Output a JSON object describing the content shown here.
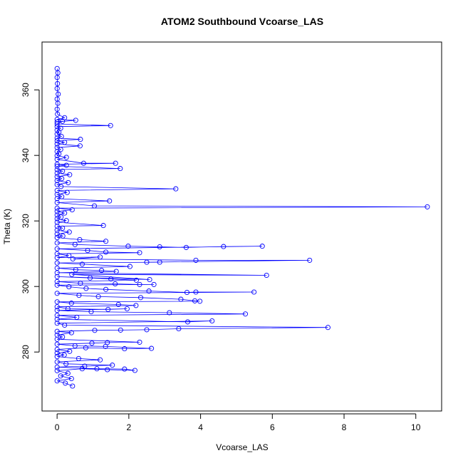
{
  "chart_data": {
    "type": "scatter",
    "title": "ATOM2 Southbound Vcoarse_LAS",
    "xlabel": "Vcoarse_LAS",
    "ylabel": "Theta (K)",
    "xlim": [
      -0.42,
      10.72
    ],
    "ylim": [
      262.0,
      374.6
    ],
    "xticks": [
      0,
      2,
      4,
      6,
      8,
      10
    ],
    "yticks": [
      280,
      300,
      320,
      340,
      360
    ],
    "grid": false,
    "legend": "none",
    "series_color": "#0000ff",
    "marker": "open-circle",
    "connect_points": true,
    "points": [
      [
        0.0,
        366.5
      ],
      [
        0.02,
        365.2
      ],
      [
        0.0,
        363.8
      ],
      [
        0.01,
        361.9
      ],
      [
        0.0,
        360.4
      ],
      [
        0.03,
        358.7
      ],
      [
        0.0,
        357.2
      ],
      [
        0.02,
        355.9
      ],
      [
        0.0,
        354.1
      ],
      [
        0.01,
        352.6
      ],
      [
        0.21,
        351.5
      ],
      [
        0.0,
        351.0
      ],
      [
        0.52,
        350.7
      ],
      [
        0.0,
        350.2
      ],
      [
        0.15,
        350.4
      ],
      [
        0.0,
        349.6
      ],
      [
        1.49,
        349.1
      ],
      [
        0.0,
        348.8
      ],
      [
        0.1,
        348.3
      ],
      [
        0.0,
        347.7
      ],
      [
        0.05,
        347.1
      ],
      [
        0.0,
        346.5
      ],
      [
        0.12,
        345.8
      ],
      [
        0.0,
        345.3
      ],
      [
        0.65,
        344.9
      ],
      [
        0.0,
        344.5
      ],
      [
        0.21,
        344.0
      ],
      [
        0.0,
        343.5
      ],
      [
        0.64,
        342.9
      ],
      [
        0.0,
        342.4
      ],
      [
        0.1,
        341.8
      ],
      [
        0.0,
        341.2
      ],
      [
        0.05,
        340.5
      ],
      [
        0.0,
        339.9
      ],
      [
        0.26,
        339.4
      ],
      [
        0.0,
        338.8
      ],
      [
        0.74,
        337.6
      ],
      [
        1.63,
        337.6
      ],
      [
        0.0,
        337.3
      ],
      [
        0.26,
        337.0
      ],
      [
        0.0,
        336.7
      ],
      [
        1.76,
        336.0
      ],
      [
        0.0,
        335.7
      ],
      [
        0.15,
        335.2
      ],
      [
        0.0,
        334.6
      ],
      [
        0.35,
        334.1
      ],
      [
        0.0,
        333.5
      ],
      [
        0.13,
        332.9
      ],
      [
        0.0,
        332.3
      ],
      [
        0.31,
        331.7
      ],
      [
        0.0,
        331.1
      ],
      [
        0.11,
        330.5
      ],
      [
        3.31,
        329.8
      ],
      [
        0.0,
        329.3
      ],
      [
        0.28,
        328.7
      ],
      [
        0.0,
        328.1
      ],
      [
        0.13,
        327.4
      ],
      [
        0.0,
        326.8
      ],
      [
        1.46,
        326.1
      ],
      [
        0.0,
        325.6
      ],
      [
        1.04,
        324.6
      ],
      [
        10.32,
        324.3
      ],
      [
        0.0,
        323.9
      ],
      [
        0.42,
        323.4
      ],
      [
        0.0,
        322.9
      ],
      [
        0.21,
        322.4
      ],
      [
        0.0,
        321.8
      ],
      [
        0.11,
        321.2
      ],
      [
        0.0,
        320.7
      ],
      [
        0.26,
        320.1
      ],
      [
        0.0,
        319.6
      ],
      [
        1.29,
        318.6
      ],
      [
        0.0,
        318.4
      ],
      [
        0.15,
        317.8
      ],
      [
        0.0,
        317.2
      ],
      [
        0.34,
        316.6
      ],
      [
        0.0,
        316.0
      ],
      [
        0.16,
        315.4
      ],
      [
        0.0,
        314.9
      ],
      [
        0.63,
        314.3
      ],
      [
        1.36,
        313.8
      ],
      [
        0.0,
        313.3
      ],
      [
        0.5,
        312.8
      ],
      [
        1.98,
        312.3
      ],
      [
        2.86,
        312.1
      ],
      [
        3.6,
        311.9
      ],
      [
        4.64,
        312.2
      ],
      [
        5.72,
        312.3
      ],
      [
        0.0,
        311.5
      ],
      [
        0.85,
        311.0
      ],
      [
        1.36,
        310.5
      ],
      [
        2.3,
        310.3
      ],
      [
        0.0,
        310.0
      ],
      [
        0.33,
        309.4
      ],
      [
        0.0,
        308.8
      ],
      [
        1.2,
        309.0
      ],
      [
        0.44,
        308.4
      ],
      [
        3.87,
        308.0
      ],
      [
        7.04,
        308.0
      ],
      [
        2.5,
        307.4
      ],
      [
        2.86,
        307.4
      ],
      [
        0.0,
        307.2
      ],
      [
        0.7,
        306.8
      ],
      [
        2.03,
        306.1
      ],
      [
        0.0,
        305.6
      ],
      [
        0.52,
        305.1
      ],
      [
        1.24,
        304.9
      ],
      [
        1.65,
        304.6
      ],
      [
        0.0,
        304.2
      ],
      [
        5.84,
        303.4
      ],
      [
        0.41,
        303.7
      ],
      [
        2.58,
        302.1
      ],
      [
        0.0,
        303.0
      ],
      [
        0.92,
        302.6
      ],
      [
        1.5,
        302.3
      ],
      [
        2.21,
        301.9
      ],
      [
        0.0,
        301.5
      ],
      [
        0.65,
        301.0
      ],
      [
        1.62,
        300.8
      ],
      [
        2.3,
        300.6
      ],
      [
        2.7,
        300.6
      ],
      [
        0.0,
        300.4
      ],
      [
        0.33,
        299.9
      ],
      [
        0.81,
        299.4
      ],
      [
        1.36,
        299.1
      ],
      [
        2.56,
        298.6
      ],
      [
        3.62,
        298.2
      ],
      [
        3.87,
        298.3
      ],
      [
        5.49,
        298.3
      ],
      [
        0.0,
        297.9
      ],
      [
        0.61,
        297.3
      ],
      [
        1.15,
        296.9
      ],
      [
        2.33,
        296.6
      ],
      [
        3.45,
        296.1
      ],
      [
        3.84,
        295.6
      ],
      [
        3.98,
        295.5
      ],
      [
        0.0,
        295.3
      ],
      [
        0.4,
        294.9
      ],
      [
        1.71,
        294.5
      ],
      [
        2.2,
        294.2
      ],
      [
        0.0,
        293.8
      ],
      [
        0.3,
        293.2
      ],
      [
        1.42,
        293.0
      ],
      [
        1.95,
        293.2
      ],
      [
        0.0,
        292.7
      ],
      [
        0.95,
        292.3
      ],
      [
        3.13,
        292.0
      ],
      [
        5.25,
        291.6
      ],
      [
        0.0,
        291.2
      ],
      [
        0.55,
        290.6
      ],
      [
        0.0,
        290.0
      ],
      [
        3.64,
        289.2
      ],
      [
        4.32,
        289.5
      ],
      [
        0.0,
        288.8
      ],
      [
        0.21,
        288.2
      ],
      [
        7.55,
        287.5
      ],
      [
        3.39,
        287.1
      ],
      [
        2.5,
        286.8
      ],
      [
        1.77,
        286.7
      ],
      [
        1.05,
        286.6
      ],
      [
        0.0,
        286.3
      ],
      [
        0.4,
        285.9
      ],
      [
        0.0,
        285.2
      ],
      [
        0.15,
        284.6
      ],
      [
        0.0,
        283.9
      ],
      [
        2.3,
        283.0
      ],
      [
        1.4,
        282.9
      ],
      [
        0.97,
        282.7
      ],
      [
        0.0,
        282.4
      ],
      [
        0.5,
        281.9
      ],
      [
        1.35,
        281.7
      ],
      [
        2.63,
        281.1
      ],
      [
        1.88,
        281.0
      ],
      [
        0.8,
        281.3
      ],
      [
        0.0,
        280.8
      ],
      [
        0.35,
        280.2
      ],
      [
        0.0,
        279.7
      ],
      [
        0.2,
        279.1
      ],
      [
        0.0,
        278.6
      ],
      [
        0.6,
        278.0
      ],
      [
        1.2,
        277.6
      ],
      [
        0.0,
        277.0
      ],
      [
        0.25,
        276.4
      ],
      [
        1.54,
        276.0
      ],
      [
        0.77,
        275.7
      ],
      [
        0.0,
        275.4
      ],
      [
        1.11,
        274.9
      ],
      [
        1.88,
        274.8
      ],
      [
        2.17,
        274.4
      ],
      [
        1.4,
        274.6
      ],
      [
        0.7,
        274.9
      ],
      [
        0.0,
        274.3
      ],
      [
        0.3,
        273.5
      ],
      [
        0.1,
        272.7
      ],
      [
        0.4,
        271.9
      ],
      [
        0.0,
        271.2
      ],
      [
        0.23,
        270.5
      ],
      [
        0.43,
        269.6
      ]
    ]
  }
}
